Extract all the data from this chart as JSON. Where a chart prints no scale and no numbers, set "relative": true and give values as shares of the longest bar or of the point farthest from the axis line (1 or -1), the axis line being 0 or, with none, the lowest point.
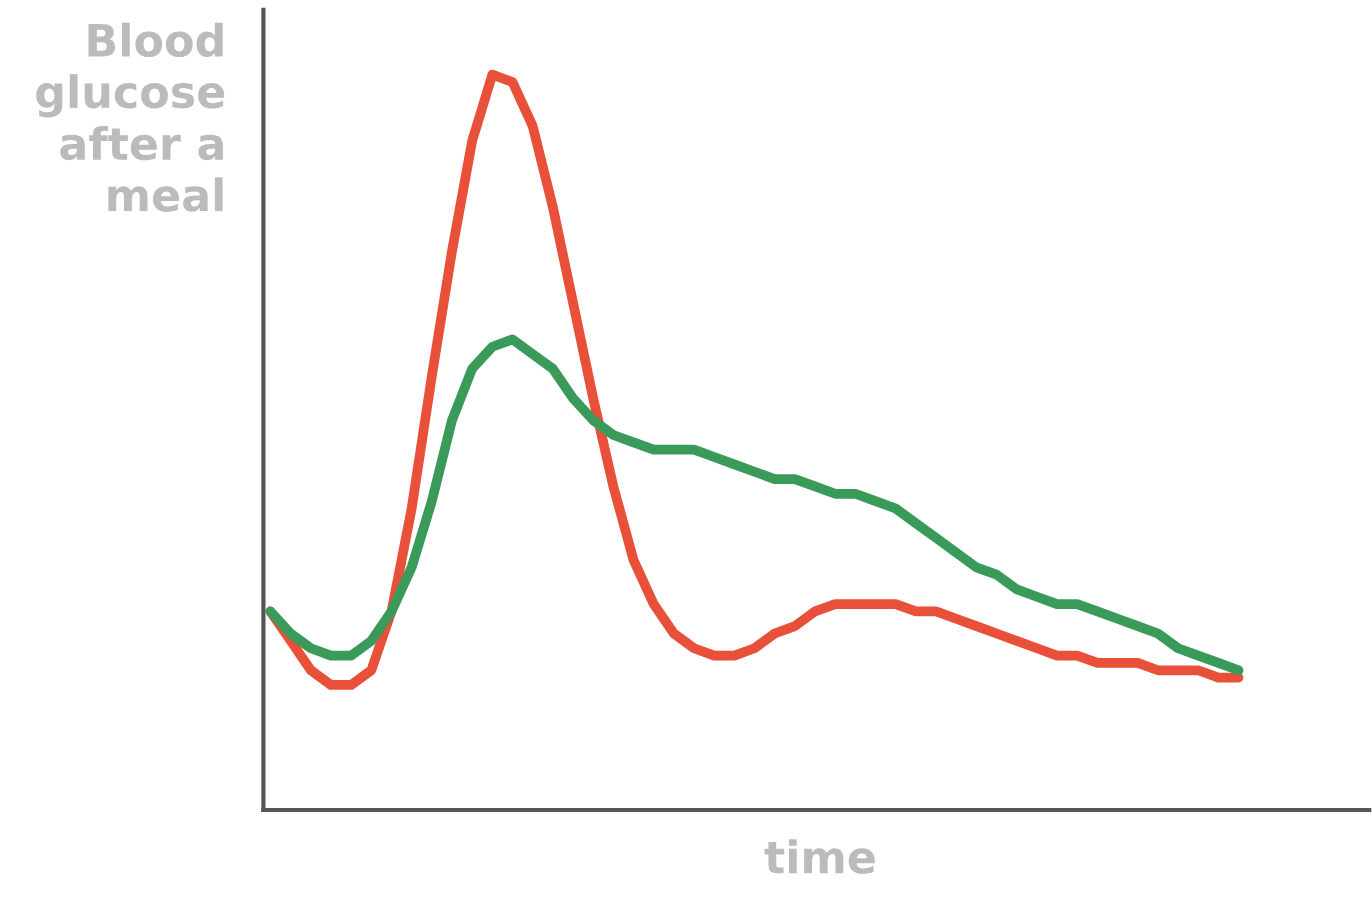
{
  "chart_data": {
    "type": "line",
    "relative": true,
    "ylabel": "Blood\nglucose\nafter a\nmeal",
    "xlabel": "time",
    "categories": [
      null,
      null,
      null,
      null,
      null,
      null,
      null,
      null,
      null,
      null,
      null,
      null,
      null,
      null,
      null,
      null,
      null,
      null,
      null,
      null,
      null,
      null,
      null,
      null,
      null,
      null,
      null,
      null,
      null,
      null,
      null,
      null,
      null,
      null,
      null,
      null,
      null,
      null,
      null,
      null,
      null,
      null,
      null,
      null,
      null,
      null,
      null,
      null,
      null
    ],
    "series": [
      {
        "color": "#e8503a",
        "values": [
          0.27,
          0.23,
          0.19,
          0.17,
          0.17,
          0.19,
          0.27,
          0.41,
          0.59,
          0.76,
          0.91,
          1,
          0.99,
          0.93,
          0.82,
          0.69,
          0.56,
          0.44,
          0.34,
          0.28,
          0.24,
          0.22,
          0.21,
          0.21,
          0.22,
          0.24,
          0.25,
          0.27,
          0.28,
          0.28,
          0.28,
          0.28,
          0.27,
          0.27,
          0.26,
          0.25,
          0.24,
          0.23,
          0.22,
          0.21,
          0.21,
          0.2,
          0.2,
          0.2,
          0.19,
          0.19,
          0.19,
          0.18,
          0.18
        ]
      },
      {
        "color": "#3a9a5a",
        "values": [
          0.27,
          0.24,
          0.22,
          0.21,
          0.21,
          0.23,
          0.27,
          0.33,
          0.42,
          0.53,
          0.6,
          0.63,
          0.64,
          0.62,
          0.6,
          0.56,
          0.53,
          0.51,
          0.5,
          0.49,
          0.49,
          0.49,
          0.48,
          0.47,
          0.46,
          0.45,
          0.45,
          0.44,
          0.43,
          0.43,
          0.42,
          0.41,
          0.39,
          0.37,
          0.35,
          0.33,
          0.32,
          0.3,
          0.29,
          0.28,
          0.28,
          0.27,
          0.26,
          0.25,
          0.24,
          0.22,
          0.21,
          0.2,
          0.19
        ]
      }
    ],
    "grid": false,
    "legend": false
  }
}
